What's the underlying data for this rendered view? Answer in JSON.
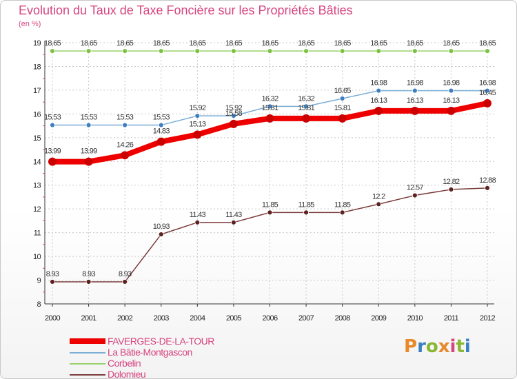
{
  "header": {
    "title": "Evolution du Taux de Taxe Foncière sur les Propriétés Bâties",
    "subtitle": "(en %)"
  },
  "brand": {
    "logo_text": "Proxiti",
    "logo_colors": [
      "#e8892b",
      "#3a7fc1",
      "#88b733",
      "#e8892b",
      "#d6457f",
      "#88b733",
      "#3a7fc1"
    ]
  },
  "colors": {
    "title": "#d6457f",
    "axis": "#333333",
    "grid": "#c8c8c8"
  },
  "chart_data": {
    "type": "line",
    "title": "Evolution du Taux de Taxe Foncière sur les Propriétés Bâties",
    "ylabel": "(en %)",
    "xlabel": "",
    "ylim": [
      8,
      19
    ],
    "yticks": [
      8,
      9,
      10,
      11,
      12,
      13,
      14,
      15,
      16,
      17,
      18,
      19
    ],
    "categories": [
      "2000",
      "2001",
      "2002",
      "2003",
      "2004",
      "2005",
      "2006",
      "2007",
      "2008",
      "2009",
      "2010",
      "2011",
      "2012"
    ],
    "series": [
      {
        "name": "FAVERGES-DE-LA-TOUR",
        "color": "#ee0000",
        "marker": "#cc0000",
        "width": 8,
        "radius": 6,
        "values": [
          13.99,
          13.99,
          14.26,
          14.83,
          15.13,
          15.58,
          15.81,
          15.81,
          15.81,
          16.13,
          16.13,
          16.13,
          16.45
        ],
        "labels": [
          "13.99",
          "13.99",
          "14.26",
          "14.83",
          "15.13",
          "15.58",
          "15.81",
          "15.81",
          "15.81",
          "16.13",
          "16.13",
          "16.13",
          "16.45"
        ]
      },
      {
        "name": "La Bâtie-Montgascon",
        "color": "#7aaed6",
        "marker": "#3f7fbf",
        "width": 1.5,
        "radius": 3.5,
        "values": [
          15.53,
          15.53,
          15.53,
          15.53,
          15.92,
          15.92,
          16.32,
          16.32,
          16.65,
          16.98,
          16.98,
          16.98,
          16.98
        ],
        "labels": [
          "15.53",
          "15.53",
          "15.53",
          "15.53",
          "15.92",
          "15.92",
          "16.32",
          "16.32",
          "16.65",
          "16.98",
          "16.98",
          "16.98",
          "16.98"
        ]
      },
      {
        "name": "Corbelin",
        "color": "#9ad16b",
        "marker": "#7cc142",
        "width": 1.5,
        "radius": 3.5,
        "values": [
          18.65,
          18.65,
          18.65,
          18.65,
          18.65,
          18.65,
          18.65,
          18.65,
          18.65,
          18.65,
          18.65,
          18.65,
          18.65
        ],
        "labels": [
          "18.65",
          "18.65",
          "18.65",
          "18.65",
          "18.65",
          "18.65",
          "18.65",
          "18.65",
          "18.65",
          "18.65",
          "18.65",
          "18.65",
          "18.65"
        ]
      },
      {
        "name": "Dolomieu",
        "color": "#7b3b3b",
        "marker": "#5c2222",
        "width": 1.5,
        "radius": 3.5,
        "values": [
          8.93,
          8.93,
          8.93,
          10.93,
          11.43,
          11.43,
          11.85,
          11.85,
          11.85,
          12.2,
          12.57,
          12.82,
          12.88
        ],
        "labels": [
          "8.93",
          "8.93",
          "8.93",
          "10.93",
          "11.43",
          "11.43",
          "11.85",
          "11.85",
          "11.85",
          "12.2",
          "12.57",
          "12.82",
          "12.88"
        ]
      }
    ],
    "legend_position": "bottom-left"
  }
}
